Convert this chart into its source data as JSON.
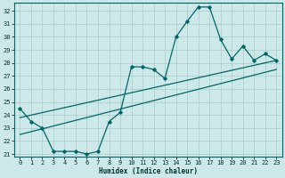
{
  "xlabel": "Humidex (Indice chaleur)",
  "bg_color": "#cce8e8",
  "grid_color": "#aacccc",
  "line_color": "#006666",
  "xlim": [
    -0.5,
    23.5
  ],
  "ylim": [
    20.8,
    32.6
  ],
  "yticks": [
    21,
    22,
    23,
    24,
    25,
    26,
    27,
    28,
    29,
    30,
    31,
    32
  ],
  "xticks": [
    0,
    1,
    2,
    3,
    4,
    5,
    6,
    7,
    8,
    9,
    10,
    11,
    12,
    13,
    14,
    15,
    16,
    17,
    18,
    19,
    20,
    21,
    22,
    23
  ],
  "line1_x": [
    0,
    1,
    2,
    3,
    4,
    5,
    6,
    7,
    8,
    9,
    10,
    11,
    12,
    13,
    14,
    15,
    16,
    17,
    18,
    19,
    20,
    21,
    22,
    23
  ],
  "line1_y": [
    24.5,
    23.5,
    23.0,
    21.2,
    21.2,
    21.2,
    21.0,
    21.2,
    23.5,
    24.2,
    27.7,
    27.7,
    27.5,
    26.8,
    30.0,
    31.2,
    32.3,
    32.3,
    29.8,
    28.3,
    29.3,
    28.2,
    28.7,
    28.2
  ],
  "line2_x": [
    0,
    23
  ],
  "line2_y": [
    23.8,
    28.2
  ],
  "line3_x": [
    0,
    23
  ],
  "line3_y": [
    22.5,
    27.5
  ]
}
